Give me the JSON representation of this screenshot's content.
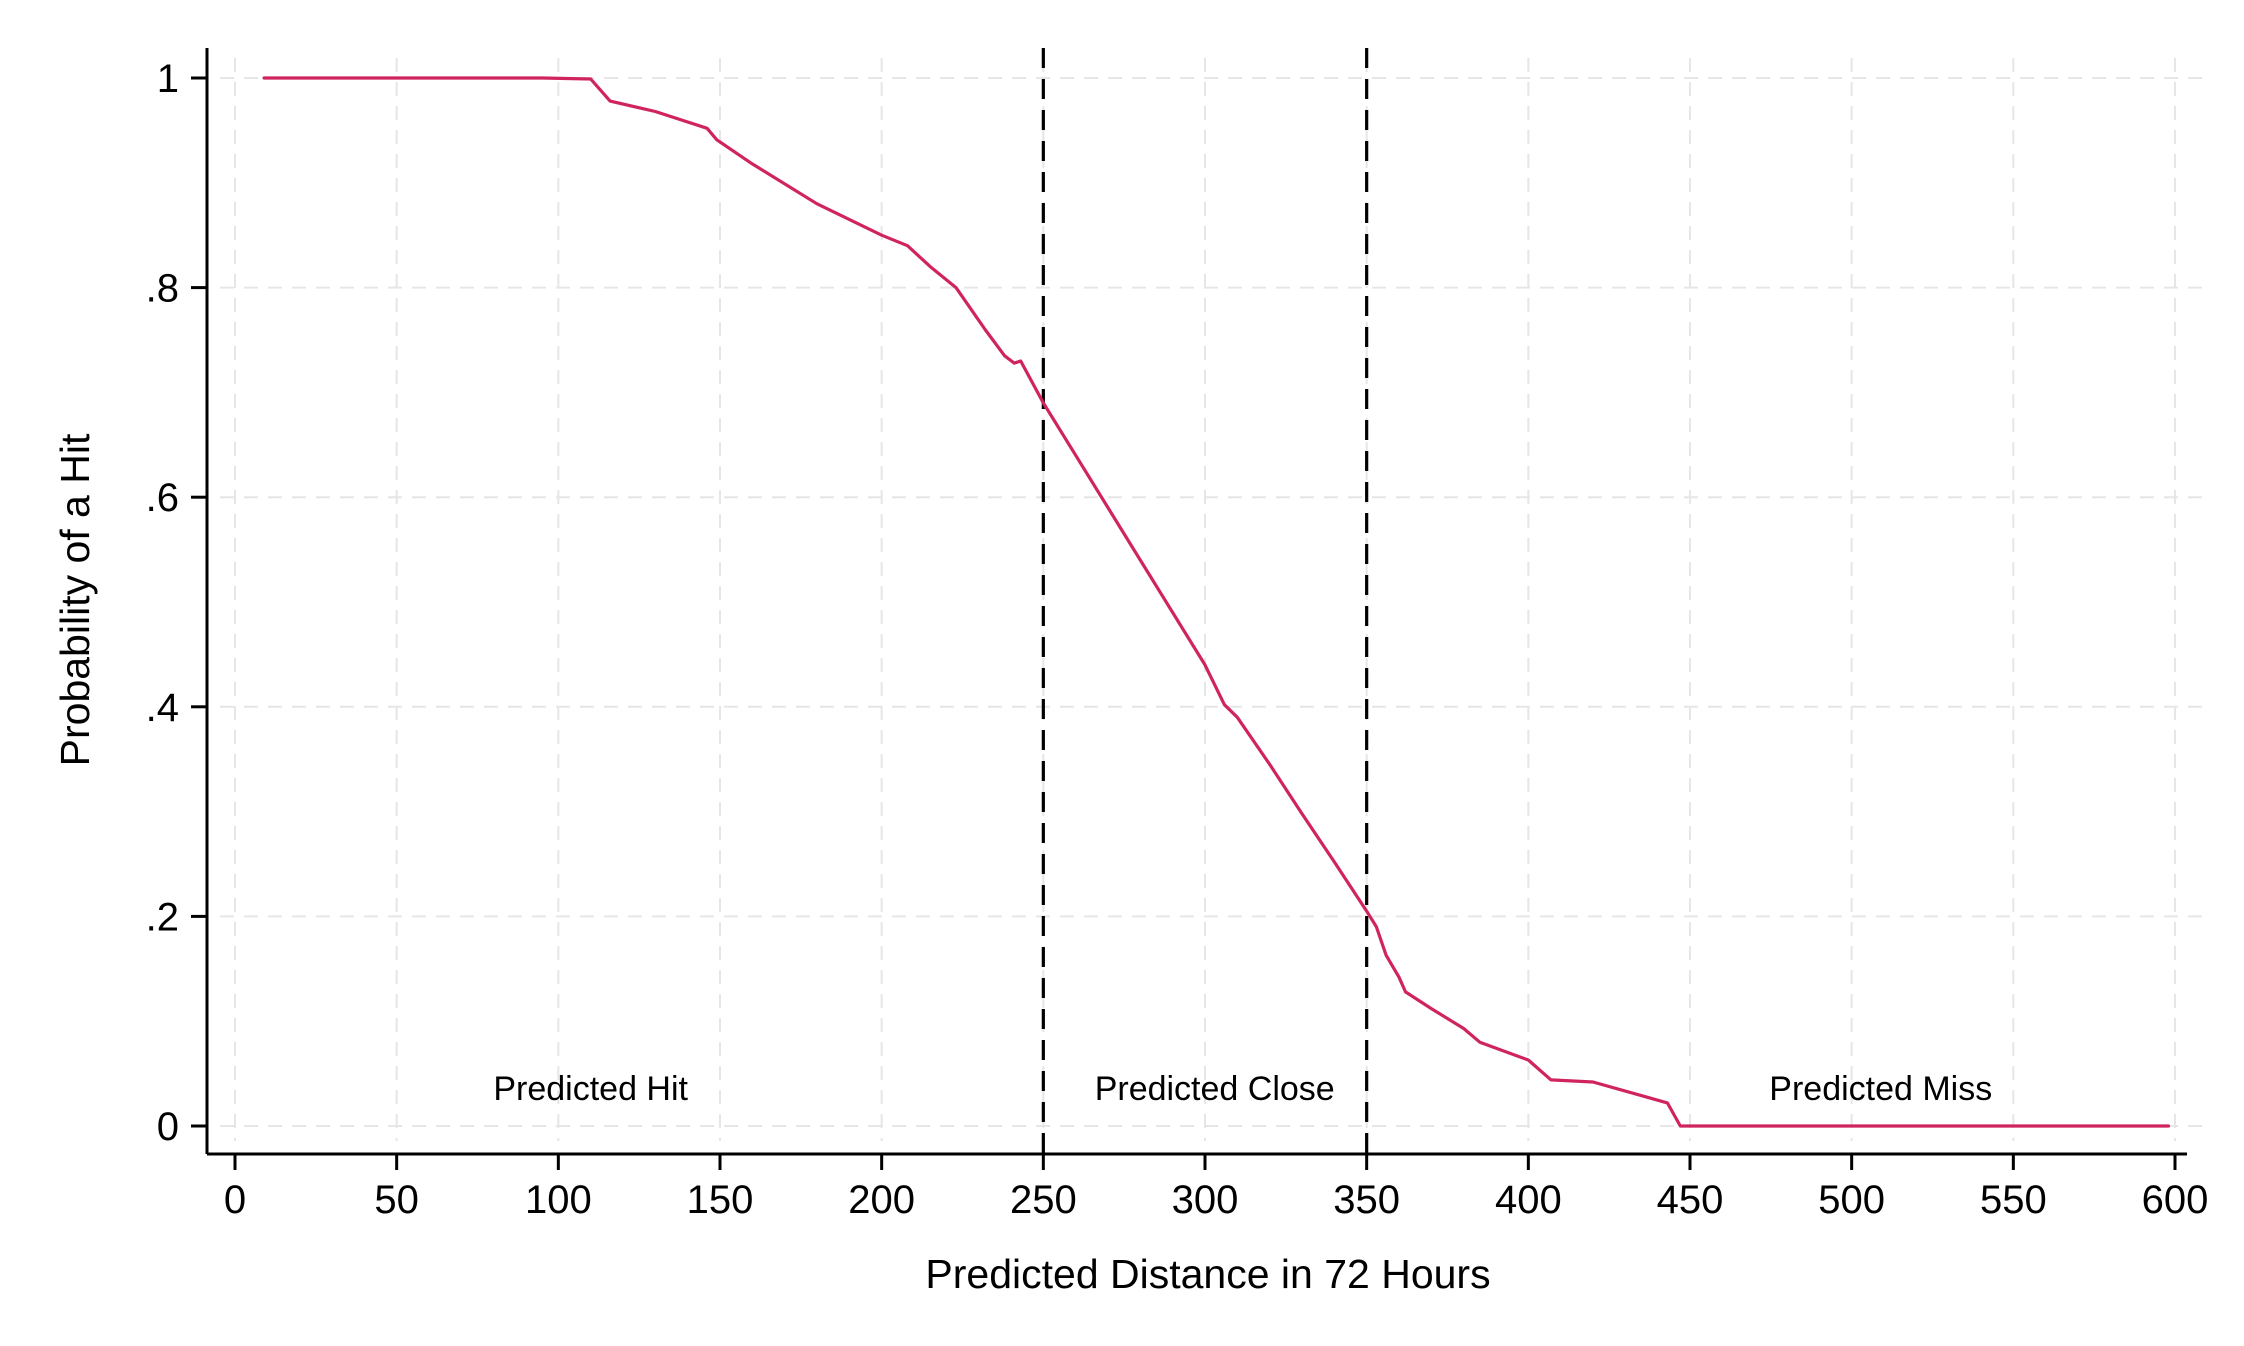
{
  "chart_data": {
    "type": "line",
    "title": "",
    "xlabel": "Predicted Distance in 72 Hours",
    "ylabel": "Probability of a Hit",
    "xlim": [
      0,
      600
    ],
    "ylim": [
      0,
      1
    ],
    "x_ticks": [
      {
        "value": 0,
        "label": "0"
      },
      {
        "value": 50,
        "label": "50"
      },
      {
        "value": 100,
        "label": "100"
      },
      {
        "value": 150,
        "label": "150"
      },
      {
        "value": 200,
        "label": "200"
      },
      {
        "value": 250,
        "label": "250"
      },
      {
        "value": 300,
        "label": "300"
      },
      {
        "value": 350,
        "label": "350"
      },
      {
        "value": 400,
        "label": "400"
      },
      {
        "value": 450,
        "label": "450"
      },
      {
        "value": 500,
        "label": "500"
      },
      {
        "value": 550,
        "label": "550"
      },
      {
        "value": 600,
        "label": "600"
      }
    ],
    "y_ticks": [
      {
        "value": 0,
        "label": "0"
      },
      {
        "value": 0.2,
        "label": ".2"
      },
      {
        "value": 0.4,
        "label": ".4"
      },
      {
        "value": 0.6,
        "label": ".6"
      },
      {
        "value": 0.8,
        "label": ".8"
      },
      {
        "value": 1,
        "label": "1"
      }
    ],
    "grid": true,
    "series": [
      {
        "color": "#d0245e",
        "x": [
          9,
          95,
          110,
          116,
          130,
          146,
          149,
          160,
          180,
          200,
          208,
          215,
          223,
          232,
          238,
          241,
          243,
          250,
          260,
          280,
          300,
          306,
          310,
          320,
          330,
          340,
          350,
          353,
          356,
          360,
          362,
          370,
          380,
          385,
          400,
          407,
          420,
          443,
          447,
          598
        ],
        "y": [
          1.0,
          1.0,
          0.999,
          0.978,
          0.968,
          0.952,
          0.941,
          0.918,
          0.88,
          0.85,
          0.84,
          0.82,
          0.8,
          0.76,
          0.735,
          0.728,
          0.73,
          0.69,
          0.64,
          0.54,
          0.44,
          0.402,
          0.39,
          0.345,
          0.298,
          0.252,
          0.205,
          0.19,
          0.163,
          0.142,
          0.128,
          0.112,
          0.093,
          0.08,
          0.063,
          0.044,
          0.042,
          0.022,
          0.0,
          0.0
        ]
      }
    ],
    "reference_lines": [
      {
        "axis": "x",
        "value": 250,
        "style": "dashed",
        "color": "#000000"
      },
      {
        "axis": "x",
        "value": 350,
        "style": "dashed",
        "color": "#000000"
      }
    ],
    "annotations": [
      {
        "text": "Predicted Hit",
        "x": 110,
        "y": 0.025
      },
      {
        "text": "Predicted Close",
        "x": 303,
        "y": 0.025
      },
      {
        "text": "Predicted Miss",
        "x": 509,
        "y": 0.025
      }
    ]
  }
}
